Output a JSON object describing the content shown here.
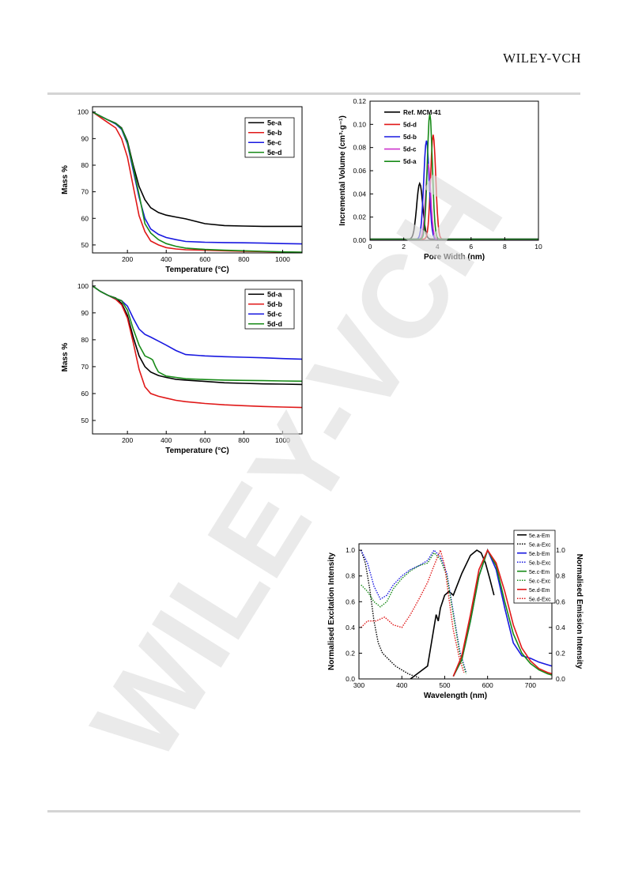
{
  "header": {
    "publisher": "WILEY-VCH"
  },
  "watermark": {
    "text": "WILEY-VCH"
  },
  "chart_data": [
    {
      "type": "line",
      "xlabel": "Temperature (°C)",
      "ylabel": "Mass %",
      "xlim": [
        20,
        1100
      ],
      "ylim": [
        47,
        102
      ],
      "xticks": [
        200,
        400,
        600,
        800,
        1000
      ],
      "yticks": [
        50,
        60,
        70,
        80,
        90,
        100
      ],
      "legend_position": "top-right",
      "series": [
        {
          "name": "5e-a",
          "color": "#000000",
          "x": [
            20,
            60,
            100,
            140,
            170,
            200,
            230,
            260,
            290,
            320,
            360,
            400,
            450,
            500,
            600,
            700,
            800,
            900,
            1000,
            1100
          ],
          "y": [
            100,
            98.5,
            97,
            95.8,
            94,
            89,
            80,
            72,
            67,
            64,
            62.2,
            61.2,
            60.5,
            59.8,
            58,
            57.3,
            57.1,
            57,
            57,
            57
          ]
        },
        {
          "name": "5e-b",
          "color": "#e01818",
          "x": [
            20,
            60,
            100,
            140,
            170,
            200,
            230,
            260,
            290,
            320,
            360,
            400,
            450,
            500,
            600,
            700,
            800,
            900,
            1000,
            1100
          ],
          "y": [
            100,
            98,
            96,
            94,
            90,
            83,
            72,
            61,
            55,
            51.5,
            50,
            49,
            48.5,
            48.2,
            48,
            47.8,
            47.6,
            47.5,
            47.3,
            47.2
          ]
        },
        {
          "name": "5e-c",
          "color": "#1818e0",
          "x": [
            20,
            60,
            100,
            140,
            170,
            200,
            230,
            260,
            290,
            320,
            360,
            400,
            450,
            500,
            600,
            700,
            800,
            900,
            1000,
            1100
          ],
          "y": [
            100,
            98.5,
            97,
            95.5,
            93.5,
            88,
            78,
            68,
            60,
            56,
            54,
            52.8,
            52,
            51.3,
            51,
            50.9,
            50.8,
            50.7,
            50.5,
            50.4
          ]
        },
        {
          "name": "5e-d",
          "color": "#178a17",
          "x": [
            20,
            60,
            100,
            140,
            170,
            200,
            230,
            260,
            290,
            320,
            360,
            400,
            450,
            500,
            600,
            700,
            800,
            900,
            1000,
            1100
          ],
          "y": [
            100,
            98.5,
            97,
            95.7,
            93.8,
            88.5,
            79,
            69,
            58,
            54.5,
            52,
            50.5,
            49.5,
            48.8,
            48.3,
            48,
            47.8,
            47.6,
            47.4,
            47.3
          ]
        }
      ]
    },
    {
      "type": "line",
      "xlabel": "Temperature (°C)",
      "ylabel": "Mass %",
      "xlim": [
        20,
        1100
      ],
      "ylim": [
        45,
        102
      ],
      "xticks": [
        200,
        400,
        600,
        800,
        1000
      ],
      "yticks": [
        50,
        60,
        70,
        80,
        90,
        100
      ],
      "legend_position": "top-right",
      "series": [
        {
          "name": "5d-a",
          "color": "#000000",
          "x": [
            20,
            60,
            100,
            140,
            170,
            200,
            230,
            260,
            290,
            320,
            360,
            400,
            450,
            500,
            600,
            700,
            800,
            900,
            1000,
            1100
          ],
          "y": [
            100,
            98,
            96.5,
            95.5,
            93.5,
            89,
            81,
            74,
            70,
            68,
            66.7,
            66,
            65.3,
            65,
            64.5,
            64,
            63.8,
            63.6,
            63.5,
            63.4
          ]
        },
        {
          "name": "5d-b",
          "color": "#e01818",
          "x": [
            20,
            60,
            100,
            140,
            170,
            200,
            230,
            260,
            290,
            320,
            360,
            400,
            450,
            500,
            600,
            700,
            800,
            900,
            1000,
            1100
          ],
          "y": [
            100,
            98,
            96.5,
            95,
            93,
            88,
            79,
            69,
            62.5,
            60,
            59,
            58.3,
            57.5,
            57,
            56.3,
            55.8,
            55.5,
            55.2,
            55,
            54.8
          ]
        },
        {
          "name": "5d-c",
          "color": "#1818e0",
          "x": [
            20,
            60,
            100,
            140,
            170,
            200,
            230,
            260,
            290,
            320,
            360,
            400,
            450,
            500,
            600,
            700,
            800,
            900,
            1000,
            1100
          ],
          "y": [
            100,
            98,
            96.5,
            95.3,
            94.5,
            92.5,
            88,
            84,
            82,
            81,
            79.5,
            78,
            76,
            74.5,
            74,
            73.7,
            73.5,
            73.3,
            73,
            72.8
          ]
        },
        {
          "name": "5d-d",
          "color": "#178a17",
          "x": [
            20,
            60,
            100,
            140,
            170,
            200,
            230,
            260,
            290,
            320,
            330,
            345,
            360,
            400,
            450,
            500,
            600,
            700,
            800,
            900,
            1000,
            1100
          ],
          "y": [
            100,
            98,
            96.5,
            95.4,
            94.5,
            91,
            84,
            78,
            74,
            73,
            72.5,
            70,
            68,
            66.5,
            66,
            65.5,
            65.2,
            65,
            64.9,
            64.8,
            64.7,
            64.6
          ]
        }
      ]
    },
    {
      "type": "line",
      "xlabel": "Pore Width (nm)",
      "ylabel": "Incremental Volume (cm³·g⁻¹)",
      "xlim": [
        0,
        10
      ],
      "ylim": [
        0,
        0.12
      ],
      "xticks": [
        0,
        2,
        4,
        6,
        8,
        10
      ],
      "yticks": [
        0.0,
        0.02,
        0.04,
        0.06,
        0.08,
        0.1,
        0.12
      ],
      "legend_position": "top-left",
      "series": [
        {
          "name": "Ref. MCM-41",
          "color": "#000000",
          "center": 2.95,
          "peak": 0.048,
          "width": 0.18
        },
        {
          "name": "5d-d",
          "color": "#e01818",
          "center": 3.75,
          "peak": 0.09,
          "width": 0.15
        },
        {
          "name": "5d-b",
          "color": "#1818e0",
          "center": 3.35,
          "peak": 0.085,
          "width": 0.16
        },
        {
          "name": "5d-c",
          "color": "#cc33cc",
          "center": 3.45,
          "peak": 0.065,
          "width": 0.15
        },
        {
          "name": "5d-a",
          "color": "#178a17",
          "center": 3.55,
          "peak": 0.108,
          "width": 0.15
        }
      ]
    },
    {
      "type": "line",
      "xlabel": "Wavelength (nm)",
      "ylabel": "Normalised Excitation Intensity",
      "y2label": "Normalised Emission Intensity",
      "xlim": [
        300,
        750
      ],
      "ylim": [
        0,
        1.05
      ],
      "xticks": [
        300,
        400,
        500,
        600,
        700
      ],
      "yticks": [
        0.0,
        0.2,
        0.4,
        0.6,
        0.8,
        1.0
      ],
      "legend_position": "top-right",
      "series": [
        {
          "name": "5e.a-Em",
          "color": "#000000",
          "style": "solid",
          "x": [
            420,
            440,
            460,
            470,
            480,
            485,
            490,
            500,
            510,
            520,
            540,
            560,
            575,
            585,
            595,
            605,
            615
          ],
          "y": [
            0,
            0.05,
            0.1,
            0.3,
            0.5,
            0.45,
            0.55,
            0.65,
            0.68,
            0.65,
            0.82,
            0.96,
            1.0,
            0.98,
            0.9,
            0.78,
            0.65
          ]
        },
        {
          "name": "5e.a-Exc",
          "color": "#000000",
          "style": "dotted",
          "x": [
            305,
            315,
            325,
            335,
            345,
            355,
            370,
            385,
            400,
            415,
            430,
            440
          ],
          "y": [
            1.0,
            0.9,
            0.7,
            0.45,
            0.28,
            0.2,
            0.15,
            0.1,
            0.07,
            0.04,
            0.02,
            0.01
          ]
        },
        {
          "name": "5e.b-Em",
          "color": "#1818e0",
          "style": "solid",
          "x": [
            520,
            540,
            560,
            580,
            600,
            620,
            640,
            660,
            680,
            700,
            720,
            740,
            750
          ],
          "y": [
            0.02,
            0.15,
            0.45,
            0.8,
            1.0,
            0.85,
            0.55,
            0.28,
            0.18,
            0.16,
            0.13,
            0.11,
            0.1
          ]
        },
        {
          "name": "5e.b-Exc",
          "color": "#1818e0",
          "style": "dotted",
          "x": [
            305,
            320,
            335,
            350,
            365,
            380,
            400,
            420,
            440,
            460,
            475,
            490,
            505,
            520,
            535,
            550
          ],
          "y": [
            1.0,
            0.9,
            0.72,
            0.62,
            0.65,
            0.73,
            0.8,
            0.85,
            0.88,
            0.92,
            1.0,
            0.95,
            0.82,
            0.52,
            0.22,
            0.05
          ]
        },
        {
          "name": "5e.c-Em",
          "color": "#178a17",
          "style": "solid",
          "x": [
            520,
            540,
            560,
            580,
            600,
            620,
            640,
            660,
            680,
            700,
            720,
            740,
            750
          ],
          "y": [
            0.02,
            0.15,
            0.45,
            0.8,
            1.0,
            0.88,
            0.6,
            0.35,
            0.2,
            0.12,
            0.07,
            0.04,
            0.03
          ]
        },
        {
          "name": "5e.c-Exc",
          "color": "#178a17",
          "style": "dotted",
          "x": [
            305,
            320,
            335,
            350,
            365,
            380,
            400,
            420,
            440,
            460,
            475,
            490,
            505,
            520,
            535,
            550
          ],
          "y": [
            0.73,
            0.68,
            0.6,
            0.56,
            0.6,
            0.7,
            0.78,
            0.84,
            0.88,
            0.9,
            0.98,
            0.93,
            0.8,
            0.5,
            0.2,
            0.04
          ]
        },
        {
          "name": "5e.d-Em",
          "color": "#e01818",
          "style": "solid",
          "x": [
            520,
            540,
            560,
            580,
            600,
            620,
            640,
            660,
            680,
            700,
            720,
            740,
            750
          ],
          "y": [
            0.02,
            0.18,
            0.5,
            0.85,
            1.0,
            0.9,
            0.68,
            0.42,
            0.24,
            0.14,
            0.08,
            0.05,
            0.04
          ]
        },
        {
          "name": "5e.d-Exc",
          "color": "#e01818",
          "style": "dotted",
          "x": [
            305,
            320,
            340,
            360,
            370,
            380,
            400,
            420,
            440,
            460,
            475,
            490,
            500,
            510,
            520,
            535,
            545
          ],
          "y": [
            0.4,
            0.45,
            0.45,
            0.48,
            0.45,
            0.42,
            0.4,
            0.5,
            0.62,
            0.75,
            0.88,
            1.0,
            0.88,
            0.62,
            0.38,
            0.15,
            0.05
          ]
        }
      ]
    }
  ]
}
